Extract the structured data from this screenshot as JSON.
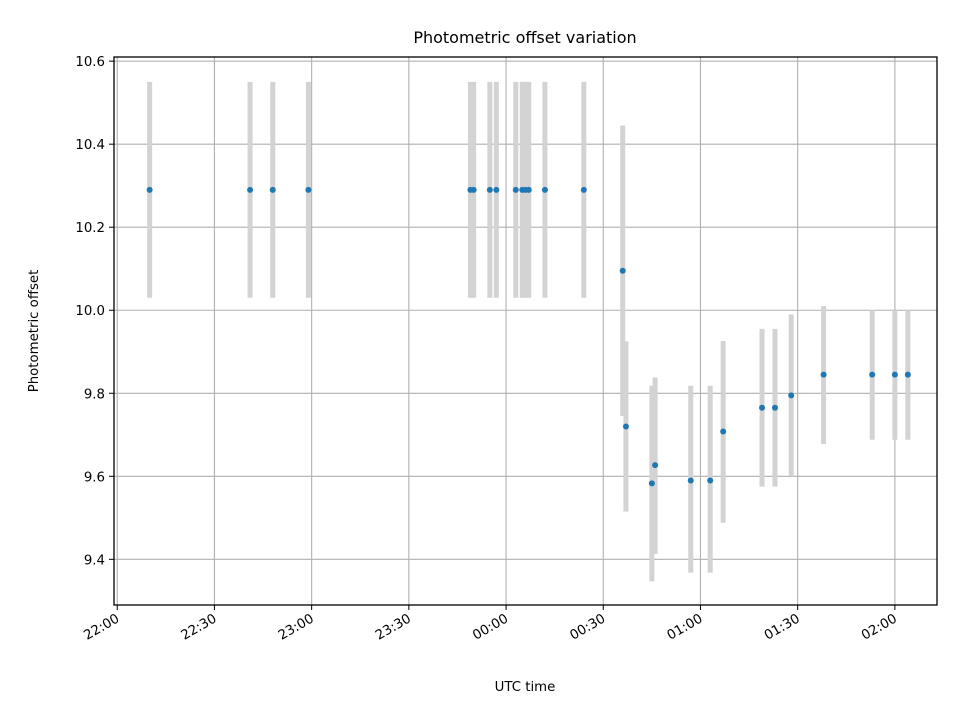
{
  "chart_data": {
    "type": "scatter",
    "title": "Photometric offset variation",
    "xlabel": "UTC time",
    "ylabel": "Photometric offset",
    "x_ticks": [
      "22:00",
      "22:30",
      "23:00",
      "23:30",
      "00:00",
      "00:30",
      "01:00",
      "01:30",
      "02:00"
    ],
    "y_ticks": [
      "9.4",
      "9.6",
      "9.8",
      "10.0",
      "10.2",
      "10.4",
      "10.6"
    ],
    "xlim": [
      "21:59",
      "02:13"
    ],
    "ylim": [
      9.29,
      10.61
    ],
    "grid": true,
    "legend": false,
    "colors": {
      "points": "#1f77b4",
      "errorbars": "#d3d3d3",
      "grid": "#b0b0b0"
    },
    "points": [
      {
        "x": "22:10",
        "y": 10.29,
        "ylow": 10.03,
        "yhigh": 10.55
      },
      {
        "x": "22:41",
        "y": 10.29,
        "ylow": 10.03,
        "yhigh": 10.55
      },
      {
        "x": "22:48",
        "y": 10.29,
        "ylow": 10.03,
        "yhigh": 10.55
      },
      {
        "x": "22:59",
        "y": 10.29,
        "ylow": 10.03,
        "yhigh": 10.55
      },
      {
        "x": "23:49",
        "y": 10.29,
        "ylow": 10.03,
        "yhigh": 10.55
      },
      {
        "x": "23:50",
        "y": 10.29,
        "ylow": 10.03,
        "yhigh": 10.55
      },
      {
        "x": "23:55",
        "y": 10.29,
        "ylow": 10.03,
        "yhigh": 10.55
      },
      {
        "x": "23:57",
        "y": 10.29,
        "ylow": 10.03,
        "yhigh": 10.55
      },
      {
        "x": "00:03",
        "y": 10.29,
        "ylow": 10.03,
        "yhigh": 10.55
      },
      {
        "x": "00:05",
        "y": 10.29,
        "ylow": 10.03,
        "yhigh": 10.55
      },
      {
        "x": "00:06",
        "y": 10.29,
        "ylow": 10.03,
        "yhigh": 10.55
      },
      {
        "x": "00:07",
        "y": 10.29,
        "ylow": 10.03,
        "yhigh": 10.55
      },
      {
        "x": "00:12",
        "y": 10.29,
        "ylow": 10.03,
        "yhigh": 10.55
      },
      {
        "x": "00:24",
        "y": 10.29,
        "ylow": 10.03,
        "yhigh": 10.55
      },
      {
        "x": "00:36",
        "y": 10.095,
        "ylow": 9.745,
        "yhigh": 10.445
      },
      {
        "x": "00:37",
        "y": 9.72,
        "ylow": 9.515,
        "yhigh": 9.925
      },
      {
        "x": "00:45",
        "y": 9.583,
        "ylow": 9.347,
        "yhigh": 9.818
      },
      {
        "x": "00:46",
        "y": 9.627,
        "ylow": 9.413,
        "yhigh": 9.838
      },
      {
        "x": "00:57",
        "y": 9.59,
        "ylow": 9.368,
        "yhigh": 9.818
      },
      {
        "x": "01:03",
        "y": 9.59,
        "ylow": 9.368,
        "yhigh": 9.818
      },
      {
        "x": "01:07",
        "y": 9.708,
        "ylow": 9.488,
        "yhigh": 9.926
      },
      {
        "x": "01:19",
        "y": 9.765,
        "ylow": 9.575,
        "yhigh": 9.955
      },
      {
        "x": "01:23",
        "y": 9.765,
        "ylow": 9.575,
        "yhigh": 9.955
      },
      {
        "x": "01:28",
        "y": 9.795,
        "ylow": 9.6,
        "yhigh": 9.99
      },
      {
        "x": "01:38",
        "y": 9.845,
        "ylow": 9.678,
        "yhigh": 10.01
      },
      {
        "x": "01:53",
        "y": 9.845,
        "ylow": 9.688,
        "yhigh": 10.0
      },
      {
        "x": "02:00",
        "y": 9.845,
        "ylow": 9.688,
        "yhigh": 10.0
      },
      {
        "x": "02:04",
        "y": 9.845,
        "ylow": 9.688,
        "yhigh": 10.0
      }
    ]
  }
}
